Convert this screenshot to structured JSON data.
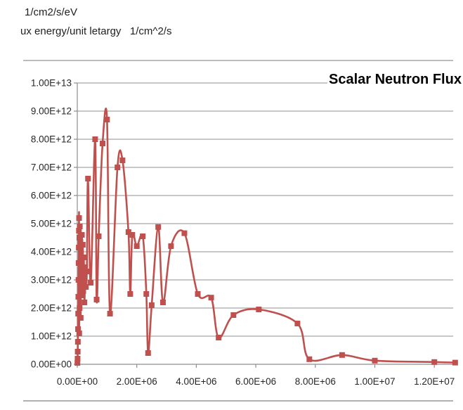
{
  "header": {
    "line1": "1/cm2/s/eV",
    "line2": "ux energy/unit letargy   1/cm^2/s"
  },
  "chart": {
    "title": "Scalar Neutron Flux"
  },
  "chart_data": {
    "type": "line",
    "title": "Scalar Neutron Flux",
    "xlabel": "",
    "ylabel": "",
    "grid": true,
    "legend": false,
    "line_style": "smoothed-with-square-markers",
    "xlim": [
      0,
      12633000
    ],
    "ylim": [
      0,
      10000000000000.0
    ],
    "x_tick_values": [
      0,
      2000000,
      4000000,
      6000000,
      8000000,
      10000000,
      12000000
    ],
    "x_tick_labels": [
      "0.00E+00",
      "2.00E+06",
      "4.00E+06",
      "6.00E+06",
      "8.00E+06",
      "1.00E+07",
      "1.20E+07"
    ],
    "y_tick_values": [
      0,
      1000000000000.0,
      2000000000000.0,
      3000000000000.0,
      4000000000000.0,
      5000000000000.0,
      6000000000000.0,
      7000000000000.0,
      8000000000000.0,
      9000000000000.0,
      10000000000000.0
    ],
    "y_tick_labels": [
      "0.00E+00",
      "1.00E+12",
      "2.00E+12",
      "3.00E+12",
      "4.00E+12",
      "5.00E+12",
      "6.00E+12",
      "7.00E+12",
      "8.00E+12",
      "9.00E+12",
      "1.00E+13"
    ],
    "colors": {
      "series": "#C0504D",
      "gridline": "#A6A6A6",
      "axis": "#8E8E8E",
      "frame": "#A6A6A6",
      "tick_text": "#262626"
    },
    "series": [
      {
        "name": "scalar-neutron-flux",
        "marker": "square",
        "points": [
          [
            5000,
            50000000000.0
          ],
          [
            10000,
            200000000000.0
          ],
          [
            15000,
            450000000000.0
          ],
          [
            20000,
            800000000000.0
          ],
          [
            25000,
            1250000000000.0
          ],
          [
            30000,
            1800000000000.0
          ],
          [
            35000,
            2400000000000.0
          ],
          [
            40000,
            3000000000000.0
          ],
          [
            45000,
            3600000000000.0
          ],
          [
            50000,
            4150000000000.0
          ],
          [
            55000,
            4750000000000.0
          ],
          [
            60000,
            5200000000000.0
          ],
          [
            65000,
            1100000000000.0
          ],
          [
            70000,
            4500000000000.0
          ],
          [
            78000,
            2000000000000.0
          ],
          [
            85000,
            4900000000000.0
          ],
          [
            95000,
            2900000000000.0
          ],
          [
            105000,
            4350000000000.0
          ],
          [
            115000,
            1650000000000.0
          ],
          [
            125000,
            3950000000000.0
          ],
          [
            140000,
            2450000000000.0
          ],
          [
            155000,
            4600000000000.0
          ],
          [
            170000,
            3100000000000.0
          ],
          [
            185000,
            4250000000000.0
          ],
          [
            200000,
            2600000000000.0
          ],
          [
            220000,
            3800000000000.0
          ],
          [
            240000,
            2200000000000.0
          ],
          [
            265000,
            3450000000000.0
          ],
          [
            290000,
            2750000000000.0
          ],
          [
            320000,
            3300000000000.0
          ],
          [
            360000,
            6600000000000.0
          ],
          [
            450000,
            2900000000000.0
          ],
          [
            600000,
            8000000000000.0
          ],
          [
            650000,
            2300000000000.0
          ],
          [
            720000,
            4550000000000.0
          ],
          [
            850000,
            7850000000000.0
          ],
          [
            1000000,
            8700000000000.0
          ],
          [
            1100000,
            1800000000000.0
          ],
          [
            1350000,
            7000000000000.0
          ],
          [
            1520000,
            7250000000000.0
          ],
          [
            1720000,
            4700000000000.0
          ],
          [
            1780000,
            2500000000000.0
          ],
          [
            1850000,
            4600000000000.0
          ],
          [
            2000000,
            4200000000000.0
          ],
          [
            2200000,
            4550000000000.0
          ],
          [
            2320000,
            2500000000000.0
          ],
          [
            2380000,
            400000000000.0
          ],
          [
            2500000,
            2100000000000.0
          ],
          [
            2720000,
            4880000000000.0
          ],
          [
            2880000,
            2200000000000.0
          ],
          [
            3150000,
            4200000000000.0
          ],
          [
            3600000,
            4660000000000.0
          ],
          [
            4050000,
            2500000000000.0
          ],
          [
            4500000,
            2370000000000.0
          ],
          [
            4750000,
            950000000000.0
          ],
          [
            5250000,
            1750000000000.0
          ],
          [
            6100000,
            1950000000000.0
          ],
          [
            7400000,
            1450000000000.0
          ],
          [
            7800000,
            180000000000.0
          ],
          [
            8900000,
            330000000000.0
          ],
          [
            10000000,
            130000000000.0
          ],
          [
            12000000,
            80000000000.0
          ],
          [
            12700000,
            60000000000.0
          ]
        ]
      }
    ]
  }
}
